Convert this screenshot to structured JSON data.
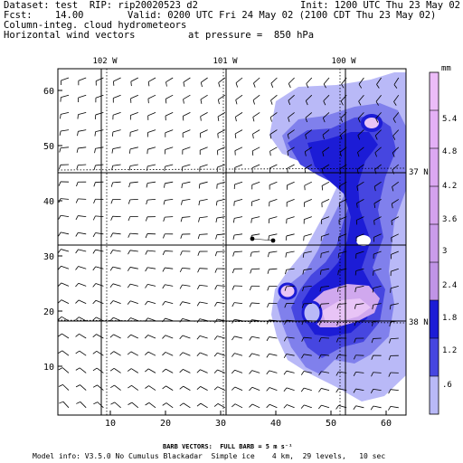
{
  "header": {
    "line1_left": "Dataset: test  RIP: rip20020523 d2",
    "line1_right": "Init: 1200 UTC Thu 23 May 02",
    "line2_left": "Fcst:    14.00",
    "line2_right": "Valid: 0200 UTC Fri 24 May 02 (2100 CDT Thu 23 May 02)",
    "line3": "Column-integ. cloud hydrometeors",
    "line4_left": "Horizontal wind vectors",
    "line4_right": "at pressure =  850 hPa"
  },
  "map": {
    "x_ticks": [
      "10",
      "20",
      "30",
      "40",
      "50",
      "60"
    ],
    "y_ticks": [
      "10",
      "20",
      "30",
      "40",
      "50",
      "60"
    ],
    "lon_labels": [
      "102 W",
      "101 W",
      "100 W"
    ],
    "lat_labels": [
      "37 N",
      "38 N"
    ],
    "fill_colors": {
      "level1": "#b9b9f7",
      "level2": "#8080ec",
      "level3": "#4646e0",
      "level4": "#1c1cd6",
      "level5": "#d0a8ee",
      "level6": "#e8c4f6"
    }
  },
  "colorbar": {
    "unit": "mm",
    "labels": [
      "5.4",
      "4.8",
      "4.2",
      "3.6",
      "3",
      "2.4",
      "1.8",
      "1.2",
      ".6"
    ]
  },
  "footer": {
    "barb_note": "BARB VECTORS:  FULL BARB = 5 m s⁻¹",
    "model_info": "Model info: V3.5.0 No Cumulus Blackadar  Simple ice    4 km,  29 levels,   10 sec"
  }
}
